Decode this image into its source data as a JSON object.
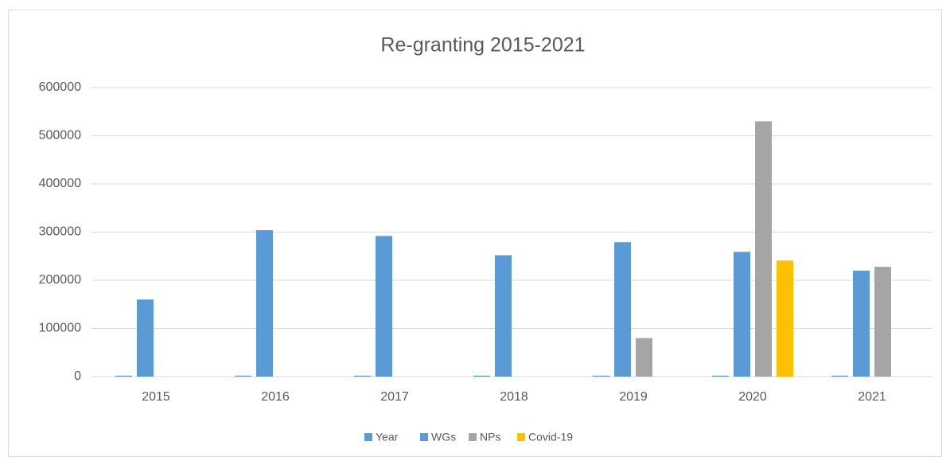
{
  "chart_data": {
    "type": "bar",
    "title": "Re-granting 2015-2021",
    "categories": [
      "2015",
      "2016",
      "2017",
      "2018",
      "2019",
      "2020",
      "2021"
    ],
    "series": [
      {
        "name": "Year",
        "color": "#5b9bd5",
        "values": [
          2015,
          2016,
          2017,
          2018,
          2019,
          2020,
          2021
        ]
      },
      {
        "name": "WGs",
        "color": "#5b9bd5",
        "values": [
          160000,
          304000,
          292000,
          252000,
          279000,
          259000,
          220000
        ]
      },
      {
        "name": "NPs",
        "color": "#a5a5a5",
        "values": [
          null,
          null,
          null,
          null,
          80000,
          530000,
          228000
        ]
      },
      {
        "name": "Covid-19",
        "color": "#ffc000",
        "values": [
          null,
          null,
          null,
          null,
          null,
          241000,
          null
        ]
      }
    ],
    "ylim": [
      0,
      600000
    ],
    "yticks": [
      0,
      100000,
      200000,
      300000,
      400000,
      500000,
      600000
    ],
    "grid": true,
    "legend": "bottom"
  }
}
